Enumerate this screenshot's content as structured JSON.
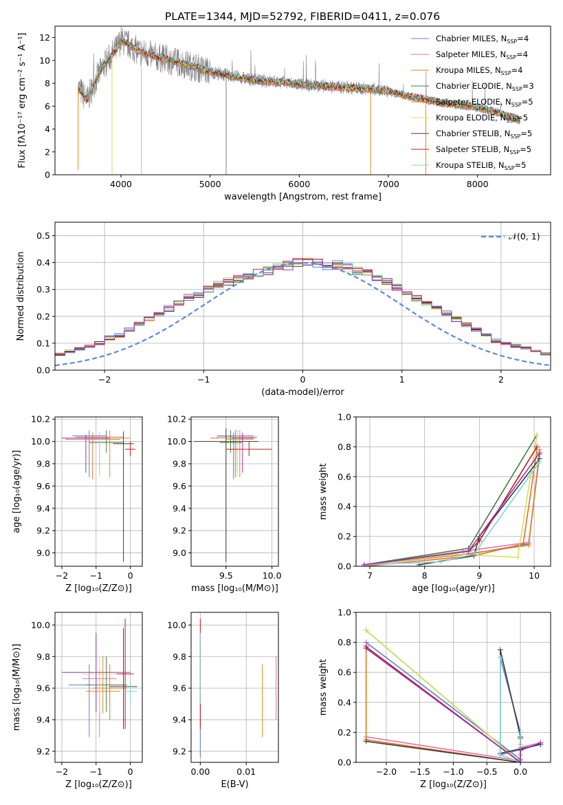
{
  "title": "PLATE=1344, MJD=52792, FIBERID=0411, z=0.076",
  "colors": [
    "#5b7fd6",
    "#e070b0",
    "#e08a1a",
    "#3f7f3f",
    "#e0702a",
    "#d4e05a",
    "#3a3a3a",
    "#c01818",
    "#7fd4d4",
    "#9a32b4",
    "#808080"
  ],
  "legend_entries": [
    {
      "label": "Chabrier MILES, N",
      "sub": "SSP",
      "tail": "=4"
    },
    {
      "label": "Salpeter MILES, N",
      "sub": "SSP",
      "tail": "=4"
    },
    {
      "label": "Kroupa MILES, N",
      "sub": "SSP",
      "tail": "=4"
    },
    {
      "label": "Chabrier ELODIE, N",
      "sub": "SSP",
      "tail": "=3"
    },
    {
      "label": "Salpeter ELODIE, N",
      "sub": "SSP",
      "tail": "=5"
    },
    {
      "label": "Kroupa ELODIE, N",
      "sub": "SSP",
      "tail": "=5"
    },
    {
      "label": "Chabrier STELIB, N",
      "sub": "SSP",
      "tail": "=5"
    },
    {
      "label": "Salpeter STELIB, N",
      "sub": "SSP",
      "tail": "=5"
    },
    {
      "label": "Kroupa STELIB, N",
      "sub": "SSP",
      "tail": "=5"
    }
  ],
  "normal_legend": "𝒩(0, 1)",
  "chart_data": [
    {
      "id": "spectrum",
      "type": "line",
      "ylabel": "Flux [fλ10⁻¹⁷ erg cm⁻² s⁻¹ A⁻¹]",
      "xlabel": "wavelength [Angstrom, rest frame]",
      "xlim": [
        3260,
        8820
      ],
      "ylim": [
        0,
        13
      ],
      "xticks": [
        4000,
        5000,
        6000,
        7000,
        8000
      ],
      "yticks": [
        0,
        2,
        4,
        6,
        8,
        10,
        12
      ],
      "continuum": [
        [
          3520,
          7.6
        ],
        [
          3560,
          7.2
        ],
        [
          3620,
          6.5
        ],
        [
          3700,
          8.0
        ],
        [
          3800,
          9.5
        ],
        [
          3880,
          10.3
        ],
        [
          3950,
          11.0
        ],
        [
          4000,
          11.8
        ],
        [
          4100,
          11.3
        ],
        [
          4200,
          10.8
        ],
        [
          4400,
          10.3
        ],
        [
          4600,
          9.9
        ],
        [
          4800,
          9.5
        ],
        [
          5000,
          9.0
        ],
        [
          5200,
          8.7
        ],
        [
          5400,
          8.4
        ],
        [
          5600,
          8.2
        ],
        [
          5800,
          8.1
        ],
        [
          6000,
          7.9
        ],
        [
          6200,
          7.8
        ],
        [
          6400,
          7.7
        ],
        [
          6600,
          7.6
        ],
        [
          6800,
          7.5
        ],
        [
          7000,
          7.3
        ],
        [
          7200,
          6.9
        ],
        [
          7400,
          6.6
        ],
        [
          7600,
          6.3
        ],
        [
          7800,
          6.1
        ],
        [
          8000,
          5.9
        ],
        [
          8200,
          5.5
        ],
        [
          8400,
          5.0
        ],
        [
          8480,
          4.8
        ]
      ],
      "spikes": [
        [
          3520,
          0.4
        ],
        [
          3900,
          0.0
        ],
        [
          4230,
          0.0
        ],
        [
          5180,
          0.0
        ],
        [
          6800,
          0.0
        ],
        [
          7420,
          0.0
        ]
      ]
    },
    {
      "id": "residuals",
      "type": "step",
      "ylabel": "Normed distribution",
      "xlabel": "(data-model)/error",
      "xlim": [
        -2.5,
        2.5
      ],
      "ylim": [
        0,
        0.55
      ],
      "xticks": [
        -2,
        -1,
        0,
        1,
        2
      ],
      "yticks": [
        0.0,
        0.1,
        0.2,
        0.3,
        0.4,
        0.5
      ],
      "bin_width": 0.1,
      "mean_hist": [
        0.03,
        0.04,
        0.05,
        0.05,
        0.06,
        0.06,
        0.07,
        0.08,
        0.09,
        0.1,
        0.12,
        0.13,
        0.15,
        0.17,
        0.19,
        0.21,
        0.23,
        0.25,
        0.27,
        0.28,
        0.3,
        0.32,
        0.33,
        0.34,
        0.35,
        0.36,
        0.37,
        0.38,
        0.39,
        0.4,
        0.4,
        0.4,
        0.39,
        0.39,
        0.38,
        0.37,
        0.36,
        0.34,
        0.33,
        0.31,
        0.29,
        0.27,
        0.25,
        0.23,
        0.21,
        0.19,
        0.17,
        0.15,
        0.13,
        0.11,
        0.1,
        0.09,
        0.08,
        0.07,
        0.06,
        0.05,
        0.04,
        0.04,
        0.03,
        0.03
      ]
    },
    {
      "id": "age-vs-Z",
      "type": "errorbar",
      "ylabel": "age  [log₁₀(age/yr)]",
      "xlabel": "Z [log₁₀(Z/Z⊙)]",
      "xlim": [
        -2.2,
        0.35
      ],
      "ylim": [
        8.88,
        10.22
      ],
      "xticks": [
        -2,
        -1,
        0
      ],
      "yticks": [
        9.0,
        9.2,
        9.4,
        9.6,
        9.8,
        10.0,
        10.2
      ],
      "points": [
        {
          "x": -1.2,
          "y": 10.05,
          "xe": 0.5,
          "y_lo": 9.68,
          "y_hi": 10.1,
          "c": 0
        },
        {
          "x": -0.9,
          "y": 10.04,
          "xe": 0.7,
          "y_lo": 9.72,
          "y_hi": 10.08,
          "c": 1
        },
        {
          "x": -0.6,
          "y": 10.03,
          "xe": 0.6,
          "y_lo": 9.68,
          "y_hi": 10.1,
          "c": 2
        },
        {
          "x": -0.7,
          "y": 9.99,
          "xe": 0.5,
          "y_lo": 9.9,
          "y_hi": 10.1,
          "c": 3
        },
        {
          "x": -1.1,
          "y": 10.02,
          "xe": 0.8,
          "y_lo": 9.66,
          "y_hi": 10.08,
          "c": 4
        },
        {
          "x": -0.9,
          "y": 10.03,
          "xe": 0.6,
          "y_lo": 9.68,
          "y_hi": 10.08,
          "c": 5
        },
        {
          "x": -0.2,
          "y": 9.98,
          "xe": 0.3,
          "y_lo": 8.92,
          "y_hi": 10.09,
          "c": 6
        },
        {
          "x": 0.0,
          "y": 9.93,
          "xe": 0.15,
          "y_lo": 9.87,
          "y_hi": 10.0,
          "c": 7
        },
        {
          "x": -1.3,
          "y": 10.03,
          "xe": 0.7,
          "y_lo": 9.72,
          "y_hi": 10.06,
          "c": 9
        }
      ]
    },
    {
      "id": "age-vs-mass",
      "type": "errorbar",
      "xlabel": "mass [log₁₀(M/M⊙)]",
      "xlim": [
        9.12,
        10.07
      ],
      "ylim": [
        8.88,
        10.22
      ],
      "xticks": [
        9.5,
        10.0
      ],
      "yticks": [
        9.0,
        9.2,
        9.4,
        9.6,
        9.8,
        10.0,
        10.2
      ],
      "points": [
        {
          "x": 9.6,
          "y": 10.05,
          "xe": 0.2,
          "y_lo": 9.68,
          "y_hi": 10.1,
          "c": 0
        },
        {
          "x": 9.62,
          "y": 10.04,
          "xe": 0.22,
          "y_lo": 9.72,
          "y_hi": 10.1,
          "c": 1
        },
        {
          "x": 9.65,
          "y": 10.02,
          "xe": 0.15,
          "y_lo": 9.68,
          "y_hi": 10.1,
          "c": 2
        },
        {
          "x": 9.55,
          "y": 9.99,
          "xe": 0.12,
          "y_lo": 9.9,
          "y_hi": 10.1,
          "c": 3
        },
        {
          "x": 9.58,
          "y": 10.03,
          "xe": 0.25,
          "y_lo": 9.66,
          "y_hi": 10.08,
          "c": 4
        },
        {
          "x": 9.62,
          "y": 10.03,
          "xe": 0.2,
          "y_lo": 9.68,
          "y_hi": 10.09,
          "c": 5
        },
        {
          "x": 9.5,
          "y": 10.0,
          "xe": 0.35,
          "y_lo": 8.92,
          "y_hi": 10.12,
          "c": 6
        },
        {
          "x": 9.75,
          "y": 9.93,
          "xe": 0.25,
          "y_lo": 9.87,
          "y_hi": 10.0,
          "c": 7
        },
        {
          "x": 9.68,
          "y": 10.03,
          "xe": 0.12,
          "y_lo": 9.72,
          "y_hi": 10.08,
          "c": 9
        }
      ]
    },
    {
      "id": "massweight-vs-age",
      "type": "line",
      "ylabel": "mass weight",
      "xlabel": "age  [log₁₀(age/yr)]",
      "xlim": [
        6.75,
        10.3
      ],
      "ylim": [
        0,
        1
      ],
      "xticks": [
        7,
        8,
        9,
        10
      ],
      "yticks": [
        0.0,
        0.2,
        0.4,
        0.6,
        0.8,
        1.0
      ],
      "series": [
        {
          "c": 0,
          "x": [
            6.9,
            8.8,
            9.9,
            10.1
          ],
          "y": [
            0.01,
            0.08,
            0.15,
            0.75
          ]
        },
        {
          "c": 1,
          "x": [
            6.9,
            8.7,
            9.9,
            10.1
          ],
          "y": [
            0.01,
            0.1,
            0.16,
            0.76
          ]
        },
        {
          "c": 2,
          "x": [
            6.9,
            8.5,
            9.9,
            10.1
          ],
          "y": [
            0.01,
            0.07,
            0.14,
            0.78
          ]
        },
        {
          "c": 3,
          "x": [
            6.9,
            8.8,
            10.05
          ],
          "y": [
            0.01,
            0.12,
            0.88
          ]
        },
        {
          "c": 4,
          "x": [
            6.9,
            8.9,
            9.8,
            10.05
          ],
          "y": [
            0.0,
            0.07,
            0.15,
            0.78
          ]
        },
        {
          "c": 5,
          "x": [
            6.9,
            8.6,
            9.7,
            10.05
          ],
          "y": [
            0.01,
            0.08,
            0.06,
            0.88
          ]
        },
        {
          "c": 6,
          "x": [
            7.9,
            8.9,
            9.0,
            10.1
          ],
          "y": [
            0.01,
            0.07,
            0.2,
            0.72
          ]
        },
        {
          "c": 7,
          "x": [
            6.9,
            8.8,
            9.0,
            10.05
          ],
          "y": [
            0.01,
            0.1,
            0.17,
            0.8
          ]
        },
        {
          "c": 8,
          "x": [
            6.9,
            8.3,
            8.9,
            10.1
          ],
          "y": [
            0.01,
            0.03,
            0.08,
            0.7
          ]
        },
        {
          "c": 9,
          "x": [
            6.9,
            8.8,
            10.1
          ],
          "y": [
            0.01,
            0.1,
            0.76
          ]
        }
      ]
    },
    {
      "id": "mass-vs-Z",
      "type": "errorbar",
      "ylabel": "mass [log₁₀(M/M⊙)]",
      "xlabel": "Z [log₁₀(Z/Z⊙)]",
      "xlim": [
        -2.2,
        0.35
      ],
      "ylim": [
        9.13,
        10.08
      ],
      "xticks": [
        -2,
        -1,
        0
      ],
      "yticks": [
        9.2,
        9.4,
        9.6,
        9.8,
        10.0
      ],
      "points": [
        {
          "x": -1.2,
          "y": 9.62,
          "xe": 0.6,
          "y_lo": 9.29,
          "y_hi": 9.75,
          "c": 0
        },
        {
          "x": -0.9,
          "y": 9.66,
          "xe": 0.5,
          "y_lo": 9.29,
          "y_hi": 9.72,
          "c": 1
        },
        {
          "x": -0.8,
          "y": 9.58,
          "xe": 0.5,
          "y_lo": 9.44,
          "y_hi": 9.8,
          "c": 2
        },
        {
          "x": -0.7,
          "y": 9.62,
          "xe": 0.6,
          "y_lo": 9.45,
          "y_hi": 9.8,
          "c": 3
        },
        {
          "x": -0.6,
          "y": 9.6,
          "xe": 0.5,
          "y_lo": 9.4,
          "y_hi": 9.75,
          "c": 4
        },
        {
          "x": -0.9,
          "y": 9.69,
          "xe": 0.5,
          "y_lo": 9.45,
          "y_hi": 9.8,
          "c": 5
        },
        {
          "x": -0.2,
          "y": 9.61,
          "xe": 0.4,
          "y_lo": 9.34,
          "y_hi": 9.98,
          "c": 6
        },
        {
          "x": -0.15,
          "y": 9.69,
          "xe": 0.25,
          "y_lo": 9.34,
          "y_hi": 10.04,
          "c": 7
        },
        {
          "x": 0.0,
          "y": 9.58,
          "xe": 0.2,
          "y_lo": 9.49,
          "y_hi": 9.64,
          "c": 8
        },
        {
          "x": -1.0,
          "y": 9.7,
          "xe": 1.0,
          "y_lo": 9.45,
          "y_hi": 9.95,
          "c": 9
        }
      ]
    },
    {
      "id": "mass-vs-EBV",
      "type": "errorbar",
      "xlabel": "E(B-V)",
      "xlim": [
        -0.002,
        0.017
      ],
      "ylim": [
        9.13,
        10.08
      ],
      "xticks": [
        0.0,
        0.01
      ],
      "ytick_labels_at": [
        9.2,
        9.4,
        9.6,
        9.8,
        10.0
      ],
      "points": [
        {
          "x": 0.0,
          "y": 9.62,
          "y_lo": 9.16,
          "y_hi": 9.95,
          "c": 0
        },
        {
          "x": 0.0,
          "y": 9.62,
          "y_lo": 9.34,
          "y_hi": 10.04,
          "c": 7
        },
        {
          "x": 0.0,
          "y": 9.6,
          "y_lo": 9.5,
          "y_hi": 9.95,
          "c": 8
        },
        {
          "x": 0.0135,
          "y": 9.55,
          "y_lo": 9.29,
          "y_hi": 9.75,
          "c": 2
        },
        {
          "x": 0.0165,
          "y": 9.6,
          "y_lo": 9.4,
          "y_hi": 9.8,
          "c": 1
        }
      ]
    },
    {
      "id": "massweight-vs-Z",
      "type": "line",
      "ylabel": "mass weight",
      "xlabel": "Z [log₁₀(Z/Z⊙)]",
      "xlim": [
        -2.45,
        0.45
      ],
      "ylim": [
        0,
        1
      ],
      "xticks": [
        -2.0,
        -1.5,
        -1.0,
        -0.5,
        0.0
      ],
      "yticks": [
        0.0,
        0.2,
        0.4,
        0.6,
        0.8,
        1.0
      ],
      "series": [
        {
          "c": 0,
          "x": [
            -2.3,
            0.0,
            0.0,
            -0.3,
            -0.3,
            0.3
          ],
          "y": [
            0.8,
            0.02,
            0.2,
            0.7,
            0.05,
            0.12
          ]
        },
        {
          "c": 1,
          "x": [
            -2.3,
            -2.3,
            0.0,
            0.0,
            0.3
          ],
          "y": [
            0.78,
            0.17,
            0.01,
            0.1,
            0.13
          ]
        },
        {
          "c": 2,
          "x": [
            -2.3,
            -2.3,
            0.0,
            0.0
          ],
          "y": [
            0.78,
            0.15,
            0.0,
            0.05
          ]
        },
        {
          "c": 3,
          "x": [
            -2.3,
            0.0,
            0.0
          ],
          "y": [
            0.88,
            0.0,
            0.12
          ]
        },
        {
          "c": 4,
          "x": [
            -2.3,
            0.0
          ],
          "y": [
            0.15,
            0.0
          ]
        },
        {
          "c": 5,
          "x": [
            -2.3,
            0.0,
            0.0
          ],
          "y": [
            0.88,
            0.0,
            0.12
          ]
        },
        {
          "c": 6,
          "x": [
            -2.3,
            0.0,
            0.0,
            -0.3,
            -0.3,
            0.3
          ],
          "y": [
            0.14,
            0.0,
            0.17,
            0.75,
            0.06,
            0.12
          ]
        },
        {
          "c": 7,
          "x": [
            -2.3,
            0.0,
            0.0
          ],
          "y": [
            0.77,
            0.0,
            0.16
          ]
        },
        {
          "c": 8,
          "x": [
            -0.3,
            -0.3,
            0.0,
            0.0
          ],
          "y": [
            0.7,
            0.05,
            0.0,
            0.2
          ]
        },
        {
          "c": 9,
          "x": [
            -2.3,
            0.0,
            0.0,
            0.3
          ],
          "y": [
            0.76,
            0.0,
            0.08,
            0.13
          ]
        }
      ]
    }
  ]
}
